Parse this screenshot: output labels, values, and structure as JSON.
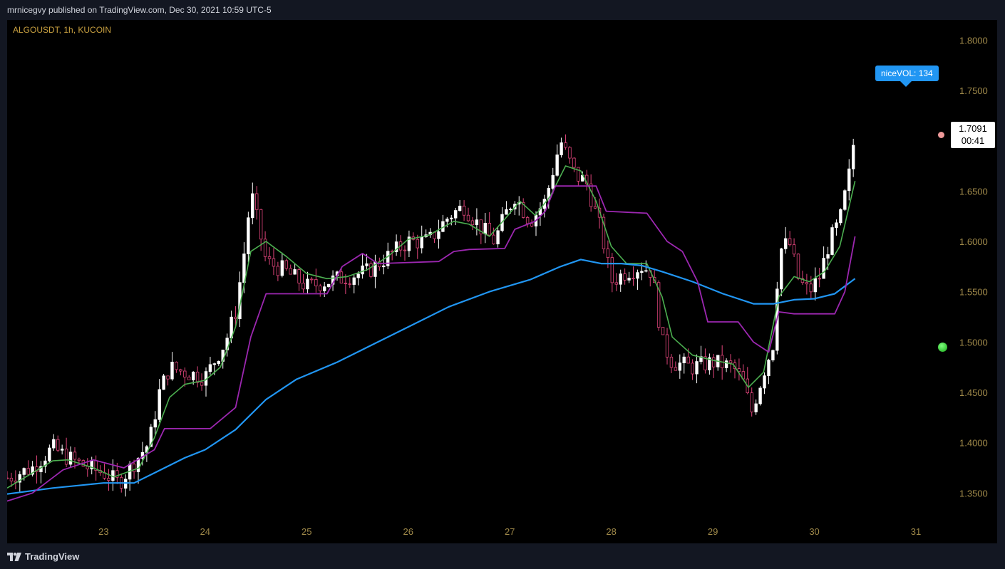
{
  "header": {
    "published_line": "mrnicegvy published on TradingView.com, Dec 30, 2021 10:59 UTC-5"
  },
  "symbol": {
    "label": "ALGOUSDT, 1h, KUCOIN"
  },
  "badge": {
    "text": "niceVOL: 134"
  },
  "last_price": {
    "value": "1.7091",
    "countdown": "00:41"
  },
  "footer": {
    "logo_text": "TradingView"
  },
  "colors": {
    "background": "#000000",
    "page": "#131722",
    "up": "#ffffff",
    "down": "#e0457b",
    "fast_ma": "#4caf50",
    "slow_ma": "#2196f3",
    "trail_stop": "#9c27b0",
    "axis_text": "#a08a4a"
  },
  "chart_data": {
    "type": "candlestick",
    "title": "ALGOUSDT, 1h, KUCOIN",
    "x_tick_labels": [
      "23",
      "24",
      "25",
      "26",
      "27",
      "28",
      "29",
      "30",
      "31"
    ],
    "x_ticks": [
      23,
      24,
      25,
      26,
      27,
      28,
      29,
      30,
      31
    ],
    "y_ticks": [
      1.35,
      1.4,
      1.45,
      1.5,
      1.55,
      1.6,
      1.65,
      1.7,
      1.75,
      1.8
    ],
    "y_tick_labels": [
      "1.3500",
      "1.4000",
      "1.4500",
      "1.5000",
      "1.5500",
      "1.6000",
      "1.6500",
      "1.7000",
      "1.7500",
      "1.8000"
    ],
    "ylim": [
      1.3,
      1.82
    ],
    "xlim": [
      22.05,
      31.8
    ],
    "grid": false,
    "close_anchors": [
      [
        22.05,
        1.365
      ],
      [
        22.3,
        1.375
      ],
      [
        22.5,
        1.395
      ],
      [
        22.65,
        1.385
      ],
      [
        22.85,
        1.375
      ],
      [
        23.0,
        1.37
      ],
      [
        23.15,
        1.36
      ],
      [
        23.3,
        1.38
      ],
      [
        23.45,
        1.4
      ],
      [
        23.55,
        1.45
      ],
      [
        23.65,
        1.475
      ],
      [
        23.8,
        1.47
      ],
      [
        24.0,
        1.465
      ],
      [
        24.2,
        1.5
      ],
      [
        24.3,
        1.53
      ],
      [
        24.4,
        1.6
      ],
      [
        24.45,
        1.65
      ],
      [
        24.6,
        1.58
      ],
      [
        24.8,
        1.57
      ],
      [
        25.0,
        1.555
      ],
      [
        25.2,
        1.56
      ],
      [
        25.4,
        1.565
      ],
      [
        25.6,
        1.57
      ],
      [
        25.8,
        1.585
      ],
      [
        26.0,
        1.6
      ],
      [
        26.2,
        1.6
      ],
      [
        26.4,
        1.625
      ],
      [
        26.55,
        1.635
      ],
      [
        26.7,
        1.615
      ],
      [
        26.85,
        1.6
      ],
      [
        26.95,
        1.625
      ],
      [
        27.05,
        1.645
      ],
      [
        27.2,
        1.62
      ],
      [
        27.35,
        1.64
      ],
      [
        27.5,
        1.7
      ],
      [
        27.65,
        1.665
      ],
      [
        27.75,
        1.66
      ],
      [
        27.9,
        1.61
      ],
      [
        28.0,
        1.56
      ],
      [
        28.15,
        1.57
      ],
      [
        28.3,
        1.575
      ],
      [
        28.4,
        1.57
      ],
      [
        28.5,
        1.5
      ],
      [
        28.6,
        1.48
      ],
      [
        28.8,
        1.475
      ],
      [
        29.0,
        1.48
      ],
      [
        29.2,
        1.475
      ],
      [
        29.3,
        1.46
      ],
      [
        29.38,
        1.43
      ],
      [
        29.5,
        1.47
      ],
      [
        29.6,
        1.5
      ],
      [
        29.65,
        1.59
      ],
      [
        29.75,
        1.6
      ],
      [
        29.85,
        1.56
      ],
      [
        29.95,
        1.55
      ],
      [
        30.05,
        1.565
      ],
      [
        30.15,
        1.6
      ],
      [
        30.25,
        1.62
      ],
      [
        30.35,
        1.67
      ],
      [
        30.4,
        1.709
      ]
    ],
    "series": [
      {
        "name": "",
        "kind": "fast_ma",
        "points": [
          [
            22.05,
            1.355
          ],
          [
            22.3,
            1.37
          ],
          [
            22.5,
            1.382
          ],
          [
            22.65,
            1.383
          ],
          [
            22.9,
            1.375
          ],
          [
            23.1,
            1.366
          ],
          [
            23.35,
            1.375
          ],
          [
            23.5,
            1.405
          ],
          [
            23.65,
            1.445
          ],
          [
            23.8,
            1.458
          ],
          [
            24.0,
            1.462
          ],
          [
            24.15,
            1.475
          ],
          [
            24.3,
            1.515
          ],
          [
            24.45,
            1.59
          ],
          [
            24.6,
            1.6
          ],
          [
            24.8,
            1.585
          ],
          [
            25.0,
            1.568
          ],
          [
            25.2,
            1.563
          ],
          [
            25.4,
            1.565
          ],
          [
            25.6,
            1.572
          ],
          [
            25.8,
            1.585
          ],
          [
            26.0,
            1.602
          ],
          [
            26.2,
            1.606
          ],
          [
            26.45,
            1.62
          ],
          [
            26.6,
            1.617
          ],
          [
            26.8,
            1.605
          ],
          [
            26.95,
            1.622
          ],
          [
            27.1,
            1.64
          ],
          [
            27.25,
            1.626
          ],
          [
            27.4,
            1.645
          ],
          [
            27.55,
            1.675
          ],
          [
            27.7,
            1.67
          ],
          [
            27.85,
            1.64
          ],
          [
            28.0,
            1.595
          ],
          [
            28.15,
            1.578
          ],
          [
            28.35,
            1.578
          ],
          [
            28.5,
            1.545
          ],
          [
            28.6,
            1.505
          ],
          [
            28.8,
            1.487
          ],
          [
            29.0,
            1.482
          ],
          [
            29.2,
            1.478
          ],
          [
            29.35,
            1.455
          ],
          [
            29.5,
            1.47
          ],
          [
            29.65,
            1.545
          ],
          [
            29.8,
            1.565
          ],
          [
            29.95,
            1.56
          ],
          [
            30.1,
            1.57
          ],
          [
            30.25,
            1.595
          ],
          [
            30.4,
            1.66
          ]
        ]
      },
      {
        "name": "",
        "kind": "slow_ma",
        "points": [
          [
            22.05,
            1.349
          ],
          [
            22.5,
            1.355
          ],
          [
            23.0,
            1.36
          ],
          [
            23.3,
            1.36
          ],
          [
            23.5,
            1.37
          ],
          [
            23.8,
            1.385
          ],
          [
            24.0,
            1.393
          ],
          [
            24.3,
            1.413
          ],
          [
            24.6,
            1.443
          ],
          [
            24.9,
            1.463
          ],
          [
            25.3,
            1.48
          ],
          [
            25.6,
            1.495
          ],
          [
            26.0,
            1.515
          ],
          [
            26.4,
            1.535
          ],
          [
            26.8,
            1.55
          ],
          [
            27.2,
            1.562
          ],
          [
            27.5,
            1.575
          ],
          [
            27.7,
            1.582
          ],
          [
            27.9,
            1.578
          ],
          [
            28.1,
            1.578
          ],
          [
            28.3,
            1.576
          ],
          [
            28.5,
            1.57
          ],
          [
            28.8,
            1.56
          ],
          [
            29.1,
            1.548
          ],
          [
            29.4,
            1.538
          ],
          [
            29.6,
            1.538
          ],
          [
            29.8,
            1.542
          ],
          [
            30.0,
            1.543
          ],
          [
            30.2,
            1.548
          ],
          [
            30.4,
            1.563
          ]
        ]
      },
      {
        "name": "",
        "kind": "trail_stop",
        "points": [
          [
            22.05,
            1.342
          ],
          [
            22.3,
            1.35
          ],
          [
            22.6,
            1.373
          ],
          [
            22.9,
            1.383
          ],
          [
            23.2,
            1.375
          ],
          [
            23.5,
            1.393
          ],
          [
            23.6,
            1.414
          ],
          [
            24.05,
            1.414
          ],
          [
            24.3,
            1.435
          ],
          [
            24.45,
            1.505
          ],
          [
            24.6,
            1.548
          ],
          [
            25.2,
            1.548
          ],
          [
            25.35,
            1.575
          ],
          [
            25.55,
            1.588
          ],
          [
            25.7,
            1.578
          ],
          [
            26.3,
            1.58
          ],
          [
            26.45,
            1.59
          ],
          [
            26.6,
            1.592
          ],
          [
            26.95,
            1.593
          ],
          [
            27.05,
            1.612
          ],
          [
            27.25,
            1.62
          ],
          [
            27.35,
            1.63
          ],
          [
            27.45,
            1.655
          ],
          [
            27.85,
            1.655
          ],
          [
            27.95,
            1.63
          ],
          [
            28.35,
            1.628
          ],
          [
            28.55,
            1.6
          ],
          [
            28.7,
            1.59
          ],
          [
            28.85,
            1.56
          ],
          [
            28.95,
            1.52
          ],
          [
            29.25,
            1.52
          ],
          [
            29.4,
            1.5
          ],
          [
            29.55,
            1.49
          ],
          [
            29.65,
            1.53
          ],
          [
            29.8,
            1.528
          ],
          [
            30.2,
            1.528
          ],
          [
            30.3,
            1.55
          ],
          [
            30.4,
            1.605
          ]
        ]
      }
    ]
  }
}
